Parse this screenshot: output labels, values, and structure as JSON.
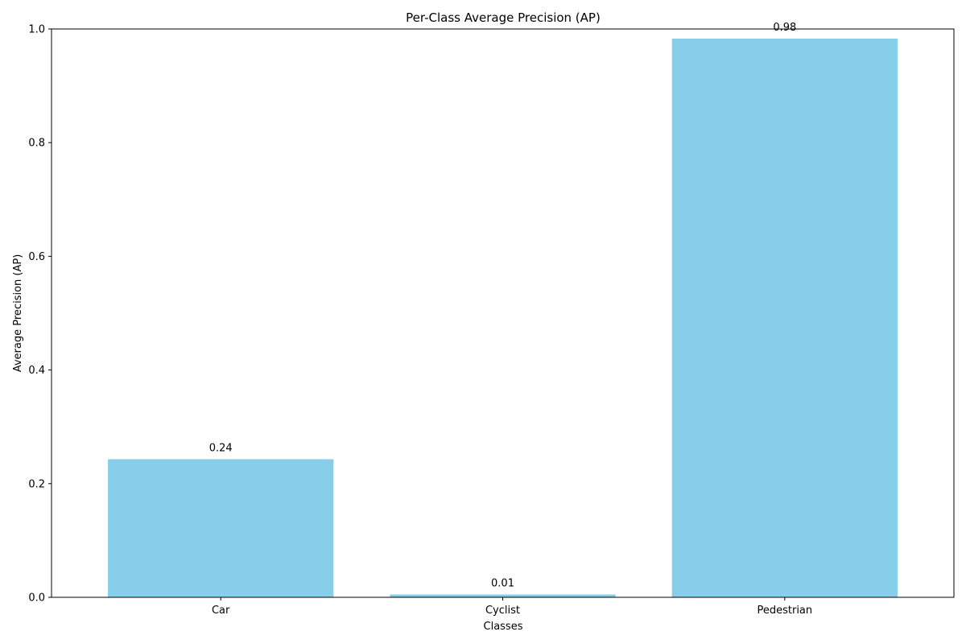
{
  "chart_data": {
    "type": "bar",
    "title": "Per-Class Average Precision (AP)",
    "xlabel": "Classes",
    "ylabel": "Average Precision (AP)",
    "categories": [
      "Car",
      "Cyclist",
      "Pedestrian"
    ],
    "values": [
      0.243,
      0.005,
      0.983
    ],
    "data_labels": [
      "0.24",
      "0.01",
      "0.98"
    ],
    "ylim": [
      0,
      1.0
    ],
    "yticks": [
      0.0,
      0.2,
      0.4,
      0.6,
      0.8,
      1.0
    ],
    "ytick_labels": [
      "0.0",
      "0.2",
      "0.4",
      "0.6",
      "0.8",
      "1.0"
    ],
    "grid": false,
    "bar_color": "#87ceeb"
  }
}
